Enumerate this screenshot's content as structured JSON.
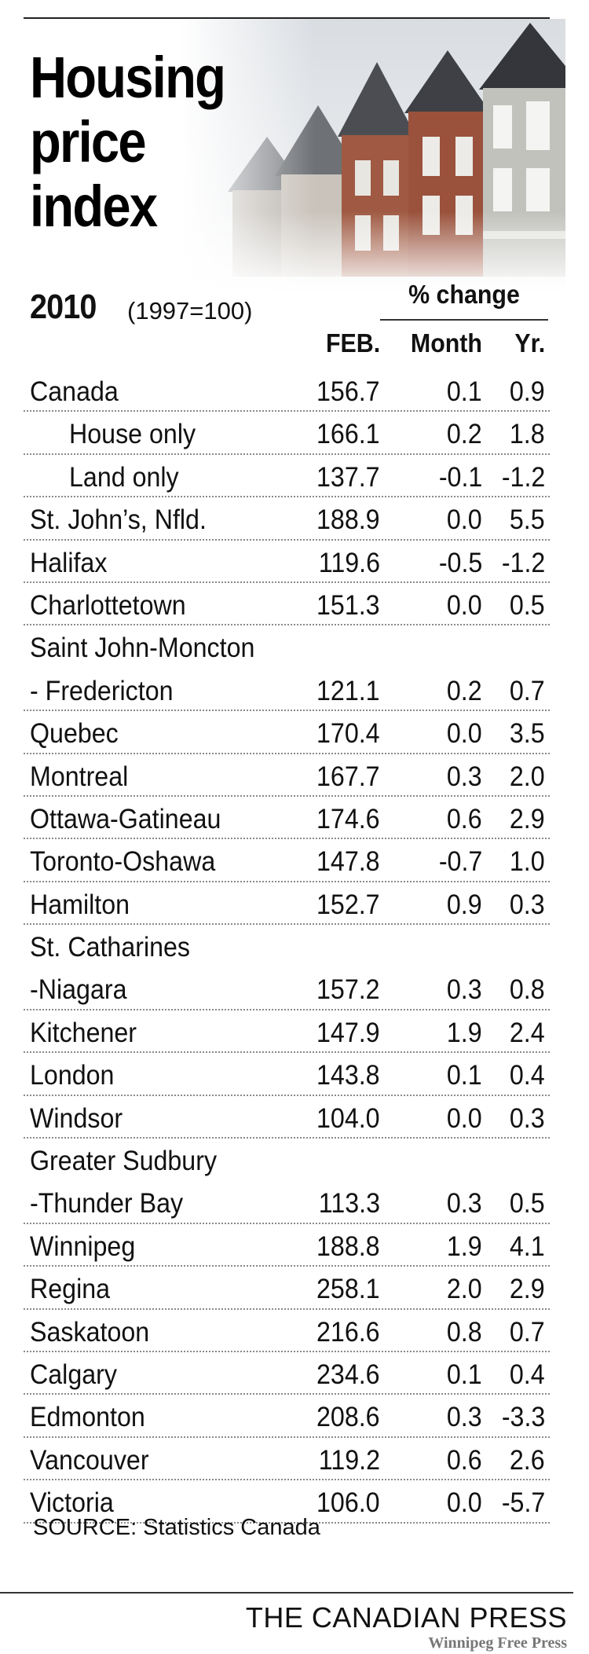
{
  "title_lines": [
    "Housing",
    "price",
    "index"
  ],
  "year": "2010",
  "base_note": "(1997=100)",
  "pct_change_label": "% change",
  "columns": {
    "feb": "FEB.",
    "month": "Month",
    "yr": "Yr."
  },
  "source": "SOURCE: Statistics Canada",
  "credit": "THE CANADIAN PRESS",
  "credit_secondary": "Winnipeg Free Press",
  "chart_data": {
    "type": "table",
    "title": "Housing price index",
    "subtitle": "2010 (1997=100)",
    "columns": [
      "FEB.",
      "Month",
      "Yr."
    ],
    "column_group": "% change",
    "rows": [
      {
        "name": "Canada",
        "feb": "156.7",
        "month": "0.1",
        "yr": "0.9"
      },
      {
        "name": "House only",
        "indent": true,
        "feb": "166.1",
        "month": "0.2",
        "yr": "1.8"
      },
      {
        "name": "Land only",
        "indent": true,
        "feb": "137.7",
        "month": "-0.1",
        "yr": "-1.2"
      },
      {
        "name": "St. John’s, Nfld.",
        "feb": "188.9",
        "month": "0.0",
        "yr": "5.5"
      },
      {
        "name": "Halifax",
        "feb": "119.6",
        "month": "-0.5",
        "yr": "-1.2"
      },
      {
        "name": "Charlottetown",
        "feb": "151.3",
        "month": "0.0",
        "yr": "0.5"
      },
      {
        "name": "Saint John-Moncton",
        "continued": true,
        "feb": "",
        "month": "",
        "yr": ""
      },
      {
        "name": "- Fredericton",
        "feb": "121.1",
        "month": "0.2",
        "yr": "0.7"
      },
      {
        "name": "Quebec",
        "feb": "170.4",
        "month": "0.0",
        "yr": "3.5"
      },
      {
        "name": "Montreal",
        "feb": "167.7",
        "month": "0.3",
        "yr": "2.0"
      },
      {
        "name": "Ottawa-Gatineau",
        "feb": "174.6",
        "month": "0.6",
        "yr": "2.9"
      },
      {
        "name": "Toronto-Oshawa",
        "feb": "147.8",
        "month": "-0.7",
        "yr": "1.0"
      },
      {
        "name": "Hamilton",
        "feb": "152.7",
        "month": "0.9",
        "yr": "0.3"
      },
      {
        "name": "St. Catharines",
        "continued": true,
        "feb": "",
        "month": "",
        "yr": ""
      },
      {
        "name": "-Niagara",
        "feb": "157.2",
        "month": "0.3",
        "yr": "0.8"
      },
      {
        "name": "Kitchener",
        "feb": "147.9",
        "month": "1.9",
        "yr": "2.4"
      },
      {
        "name": "London",
        "feb": "143.8",
        "month": "0.1",
        "yr": "0.4"
      },
      {
        "name": "Windsor",
        "feb": "104.0",
        "month": "0.0",
        "yr": "0.3"
      },
      {
        "name": "Greater Sudbury",
        "continued": true,
        "feb": "",
        "month": "",
        "yr": ""
      },
      {
        "name": "-Thunder Bay",
        "feb": "113.3",
        "month": "0.3",
        "yr": "0.5"
      },
      {
        "name": "Winnipeg",
        "feb": "188.8",
        "month": "1.9",
        "yr": "4.1"
      },
      {
        "name": "Regina",
        "feb": "258.1",
        "month": "2.0",
        "yr": "2.9"
      },
      {
        "name": "Saskatoon",
        "feb": "216.6",
        "month": "0.8",
        "yr": "0.7"
      },
      {
        "name": "Calgary",
        "feb": "234.6",
        "month": "0.1",
        "yr": "0.4"
      },
      {
        "name": "Edmonton",
        "feb": "208.6",
        "month": "0.3",
        "yr": "-3.3"
      },
      {
        "name": "Vancouver",
        "feb": "119.2",
        "month": "0.6",
        "yr": "2.6"
      },
      {
        "name": "Victoria",
        "feb": "106.0",
        "month": "0.0",
        "yr": "-5.7"
      }
    ]
  }
}
